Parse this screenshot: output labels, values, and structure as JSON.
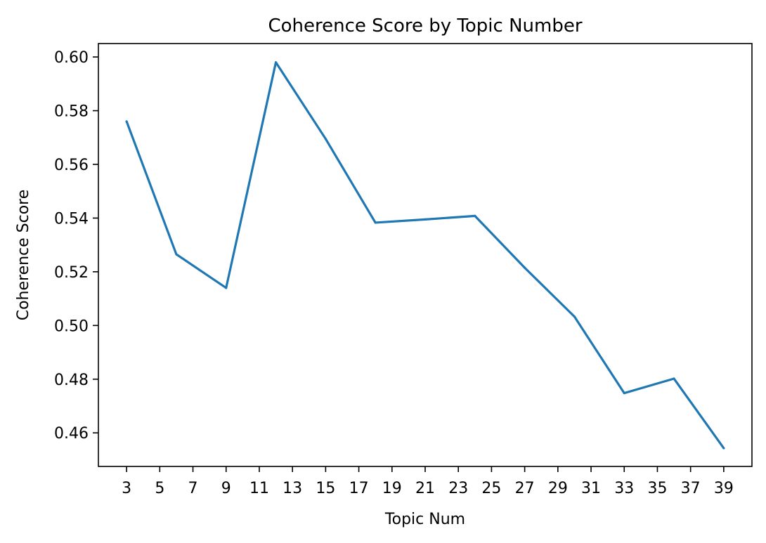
{
  "chart_data": {
    "type": "line",
    "title": "Coherence Score by Topic Number",
    "xlabel": "Topic Num",
    "ylabel": "Coherence Score",
    "x_ticks": [
      3,
      5,
      7,
      9,
      11,
      13,
      15,
      17,
      19,
      21,
      23,
      25,
      27,
      29,
      31,
      33,
      35,
      37,
      39
    ],
    "y_ticks": [
      "0.46",
      "0.48",
      "0.50",
      "0.52",
      "0.54",
      "0.56",
      "0.58",
      "0.60"
    ],
    "xlim": [
      1.3,
      40.7
    ],
    "ylim": [
      0.4475,
      0.605
    ],
    "grid": false,
    "legend": "none",
    "series": [
      {
        "color": "#1f77b4",
        "x": [
          3,
          6,
          9,
          12,
          15,
          18,
          21,
          24,
          27,
          30,
          33,
          36,
          39
        ],
        "y": [
          0.576,
          0.5265,
          0.514,
          0.598,
          0.5695,
          0.5383,
          0.5395,
          0.5408,
          0.5215,
          0.5033,
          0.4748,
          0.4802,
          0.4543
        ]
      }
    ]
  }
}
